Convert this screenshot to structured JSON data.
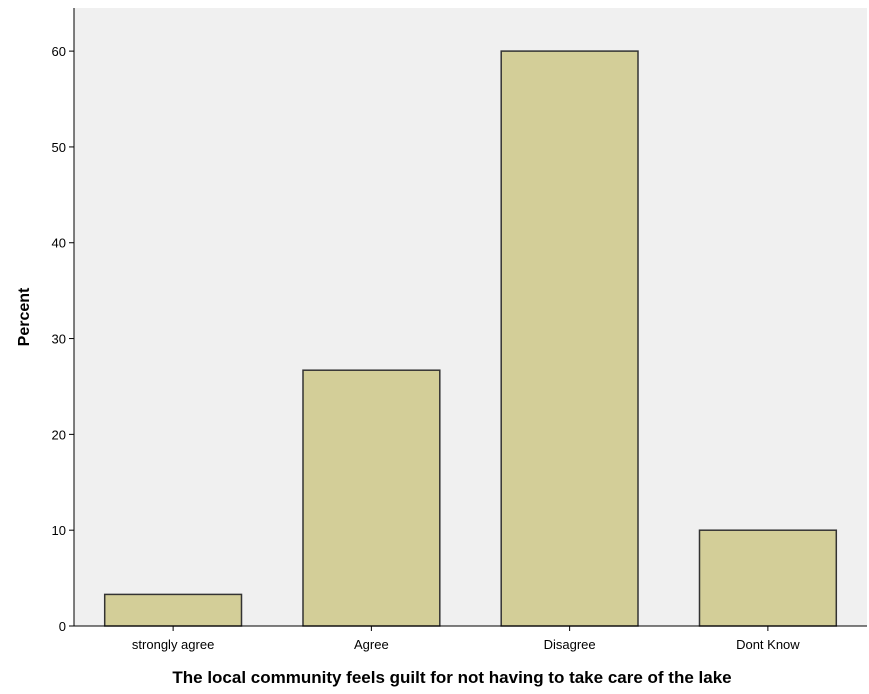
{
  "chart_data": {
    "type": "bar",
    "categories": [
      "strongly agree",
      "Agree",
      "Disagree",
      "Dont Know"
    ],
    "values": [
      3.3,
      26.7,
      60.0,
      10.0
    ],
    "ylabel": "Percent",
    "xlabel": "The local community feels guilt for not having to take care of the lake",
    "ylim": [
      0,
      64.5
    ],
    "yticks": [
      0,
      10,
      20,
      30,
      40,
      50,
      60
    ],
    "grid": false,
    "legend": "none",
    "colors": {
      "plot_background": "#f0f0f0",
      "bar_fill": "#d3ce98",
      "bar_stroke": "#333333"
    }
  }
}
